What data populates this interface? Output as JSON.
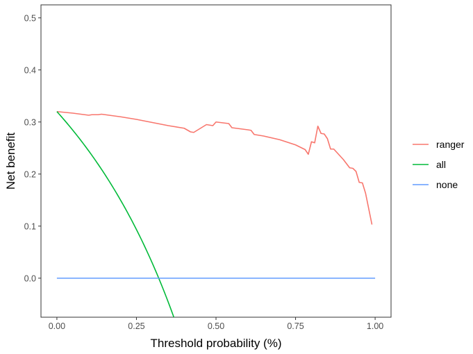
{
  "chart_data": {
    "type": "line",
    "title": "",
    "xlabel": "Threshold probability (%)",
    "ylabel": "Net benefit",
    "xlim": [
      -0.05,
      1.05
    ],
    "ylim": [
      -0.075,
      0.525
    ],
    "x_ticks": [
      0.0,
      0.25,
      0.5,
      0.75,
      1.0
    ],
    "x_tick_labels": [
      "0.00",
      "0.25",
      "0.50",
      "0.75",
      "1.00"
    ],
    "y_ticks": [
      0.0,
      0.1,
      0.2,
      0.3,
      0.4,
      0.5
    ],
    "y_tick_labels": [
      "0.0",
      "0.1",
      "0.2",
      "0.3",
      "0.4",
      "0.5"
    ],
    "grid": false,
    "legend_position": "right",
    "series": [
      {
        "name": "ranger",
        "color": "#F8766D",
        "points": [
          [
            0.0,
            0.32
          ],
          [
            0.05,
            0.317
          ],
          [
            0.1,
            0.313
          ],
          [
            0.11,
            0.314
          ],
          [
            0.13,
            0.314
          ],
          [
            0.14,
            0.315
          ],
          [
            0.2,
            0.31
          ],
          [
            0.25,
            0.305
          ],
          [
            0.3,
            0.299
          ],
          [
            0.35,
            0.293
          ],
          [
            0.4,
            0.288
          ],
          [
            0.42,
            0.281
          ],
          [
            0.43,
            0.28
          ],
          [
            0.47,
            0.295
          ],
          [
            0.49,
            0.293
          ],
          [
            0.5,
            0.3
          ],
          [
            0.54,
            0.297
          ],
          [
            0.55,
            0.289
          ],
          [
            0.6,
            0.285
          ],
          [
            0.61,
            0.284
          ],
          [
            0.62,
            0.276
          ],
          [
            0.65,
            0.273
          ],
          [
            0.7,
            0.266
          ],
          [
            0.75,
            0.256
          ],
          [
            0.78,
            0.247
          ],
          [
            0.79,
            0.238
          ],
          [
            0.8,
            0.262
          ],
          [
            0.81,
            0.26
          ],
          [
            0.82,
            0.292
          ],
          [
            0.83,
            0.278
          ],
          [
            0.84,
            0.277
          ],
          [
            0.85,
            0.268
          ],
          [
            0.86,
            0.248
          ],
          [
            0.87,
            0.248
          ],
          [
            0.9,
            0.228
          ],
          [
            0.92,
            0.212
          ],
          [
            0.93,
            0.211
          ],
          [
            0.94,
            0.205
          ],
          [
            0.95,
            0.184
          ],
          [
            0.96,
            0.183
          ],
          [
            0.97,
            0.163
          ],
          [
            0.99,
            0.103
          ]
        ]
      },
      {
        "name": "all",
        "color": "#00BA38",
        "formula": "0.32 - 0.68 * p / (1 - p)",
        "x_range": [
          0.0,
          0.37
        ]
      },
      {
        "name": "none",
        "color": "#619CFF",
        "points": [
          [
            0.0,
            0.0
          ],
          [
            1.0,
            0.0
          ]
        ]
      }
    ]
  }
}
